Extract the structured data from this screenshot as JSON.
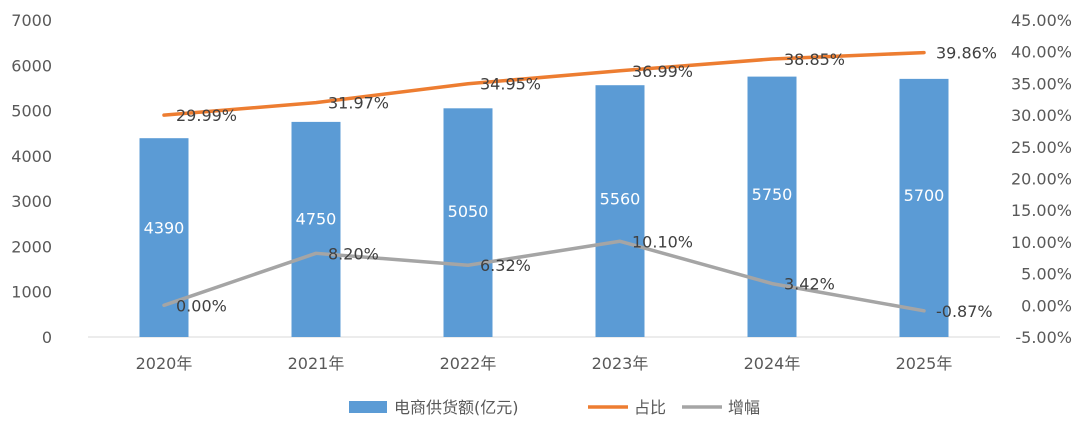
{
  "chart_data": {
    "type": "bar",
    "categories": [
      "2020年",
      "2021年",
      "2022年",
      "2023年",
      "2024年",
      "2025年"
    ],
    "series": [
      {
        "name": "电商供货额(亿元)",
        "type": "bar",
        "axis": "left",
        "color": "#5b9bd5",
        "values": [
          4390,
          4750,
          5050,
          5560,
          5750,
          5700
        ],
        "labels": [
          "4390",
          "4750",
          "5050",
          "5560",
          "5750",
          "5700"
        ]
      },
      {
        "name": "占比",
        "type": "line",
        "axis": "right",
        "color": "#ed7d31",
        "values": [
          29.99,
          31.97,
          34.95,
          36.99,
          38.85,
          39.86
        ],
        "labels": [
          "29.99%",
          "31.97%",
          "34.95%",
          "36.99%",
          "38.85%",
          "39.86%"
        ]
      },
      {
        "name": "增幅",
        "type": "line",
        "axis": "right",
        "color": "#a5a5a5",
        "values": [
          0.0,
          8.2,
          6.32,
          10.1,
          3.42,
          -0.87
        ],
        "labels": [
          "0.00%",
          "8.20%",
          "6.32%",
          "10.10%",
          "3.42%",
          "-0.87%"
        ]
      }
    ],
    "y_left": {
      "min": 0,
      "max": 7000,
      "ticks": [
        "0",
        "1000",
        "2000",
        "3000",
        "4000",
        "5000",
        "6000",
        "7000"
      ]
    },
    "y_right": {
      "min": -5,
      "max": 45,
      "ticks": [
        "-5.00%",
        "0.00%",
        "5.00%",
        "10.00%",
        "15.00%",
        "20.00%",
        "25.00%",
        "30.00%",
        "35.00%",
        "40.00%",
        "45.00%"
      ]
    },
    "grid": false,
    "legend_position": "bottom"
  }
}
